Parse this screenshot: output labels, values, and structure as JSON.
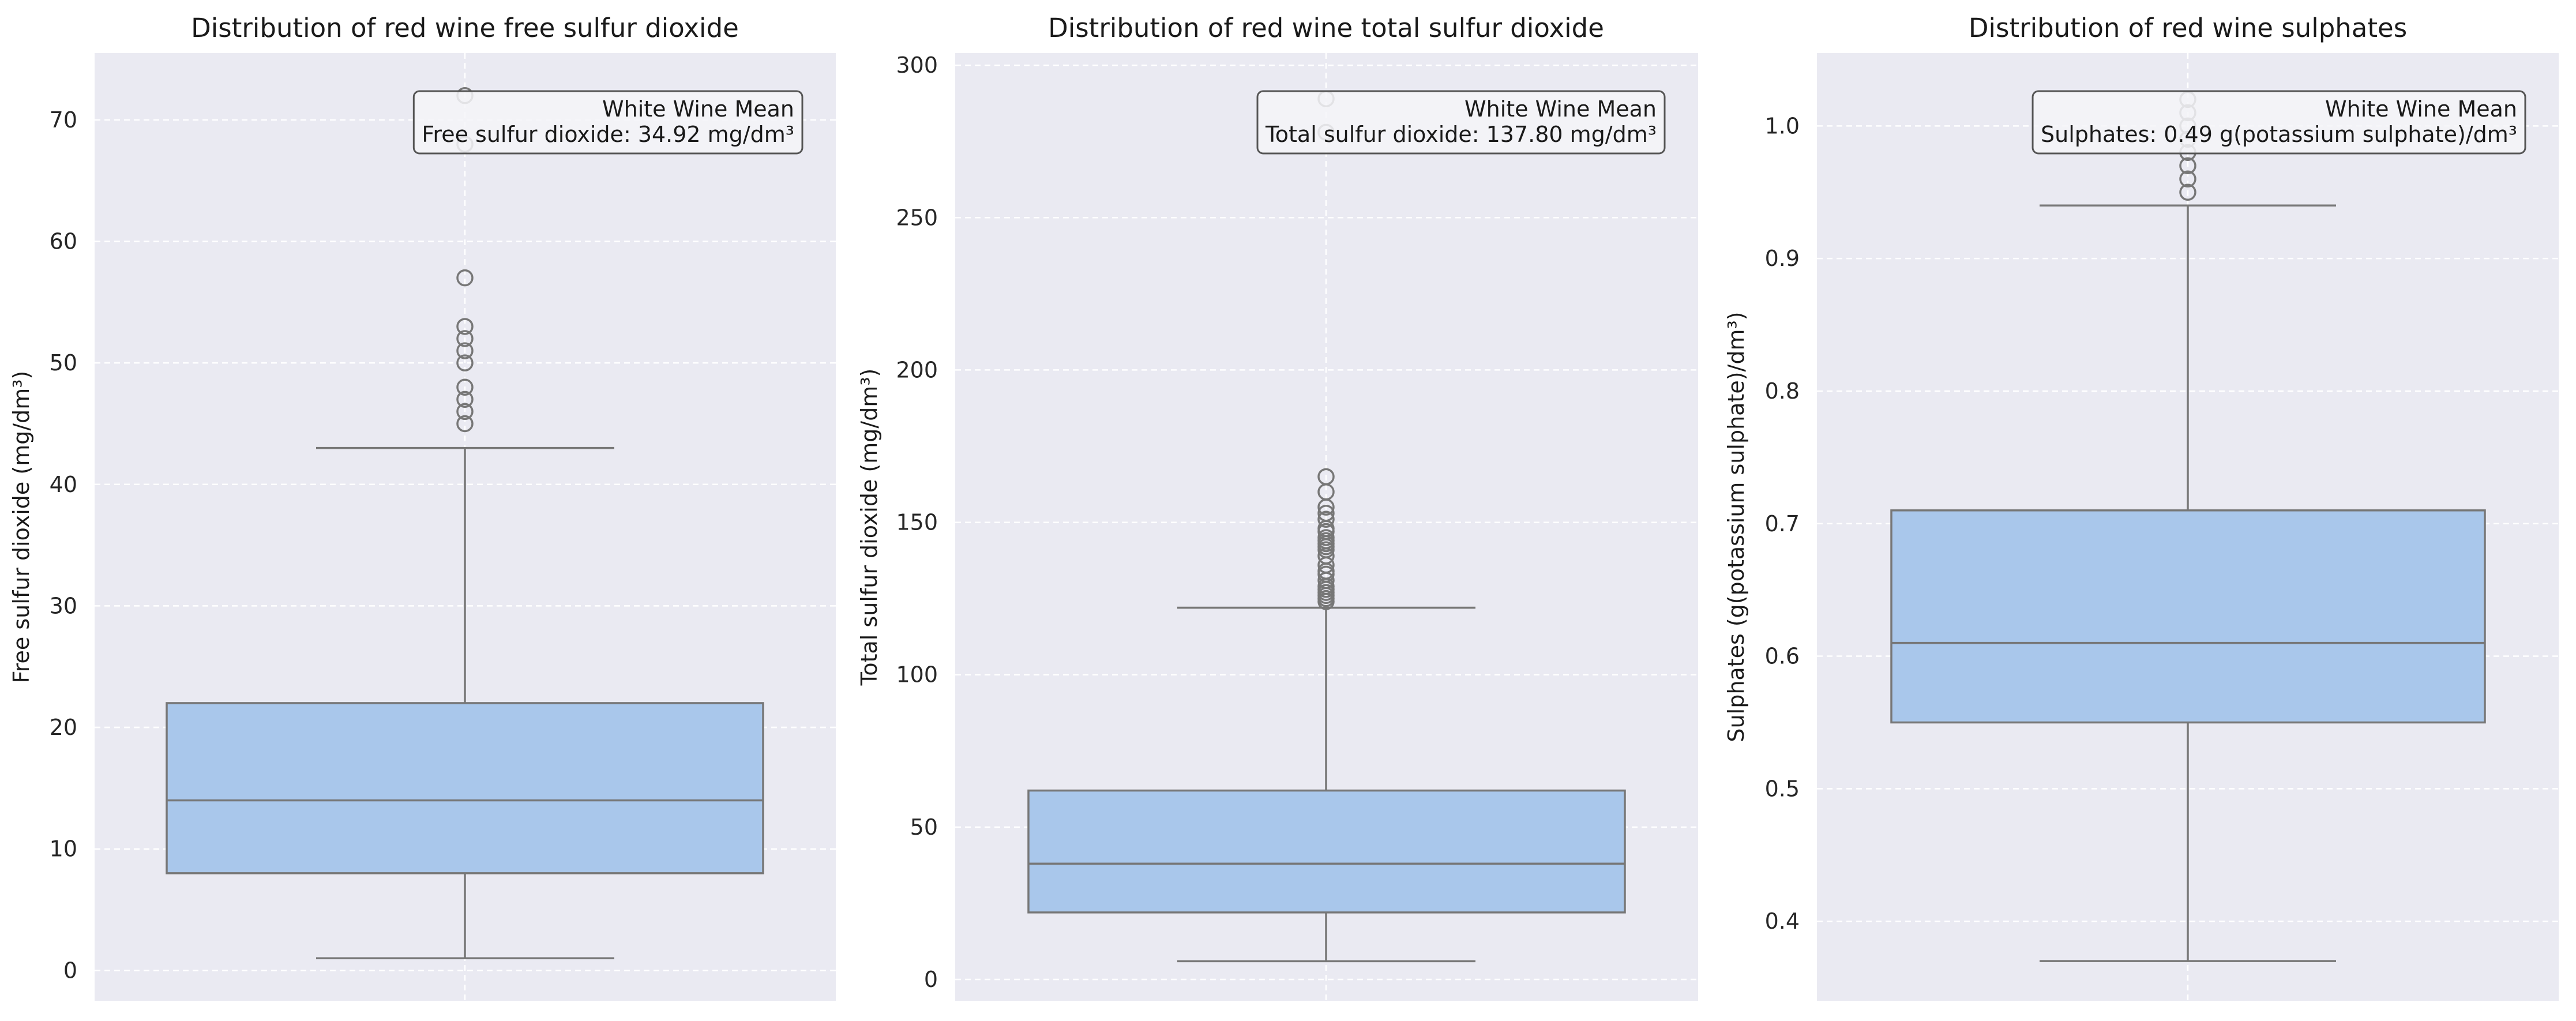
{
  "colors": {
    "plot_background": "#eaeaf2",
    "gridline": "#ffffff",
    "box_fill": "#a9c7eb",
    "box_edge": "#777777",
    "legend_fill": "#f4f4f8",
    "legend_edge": "#555555"
  },
  "chart_data": [
    {
      "type": "box",
      "title": "Distribution of red wine free sulfur dioxide",
      "xlabel": "",
      "ylabel": "Free sulfur dioxide (mg/dm³)",
      "ylim": [
        -2.5,
        75.5
      ],
      "yticks": [
        0,
        10,
        20,
        30,
        40,
        50,
        60,
        70
      ],
      "ytick_labels": [
        "0",
        "10",
        "20",
        "30",
        "40",
        "50",
        "60",
        "70"
      ],
      "grid": true,
      "box": {
        "whisker_low": 1,
        "q1": 8,
        "median": 14,
        "q3": 22,
        "whisker_high": 43
      },
      "outliers": [
        45,
        46,
        47,
        48,
        50,
        51,
        52,
        53,
        57,
        68,
        72
      ],
      "annotation": {
        "lines": [
          "White Wine Mean",
          "Free sulfur dioxide: 34.92 mg/dm³"
        ],
        "placement": "top-right"
      }
    },
    {
      "type": "box",
      "title": "Distribution of red wine total sulfur dioxide",
      "xlabel": "",
      "ylabel": "Total sulfur dioxide (mg/dm³)",
      "ylim": [
        -7,
        304
      ],
      "yticks": [
        0,
        50,
        100,
        150,
        200,
        250,
        300
      ],
      "ytick_labels": [
        "0",
        "50",
        "100",
        "150",
        "200",
        "250",
        "300"
      ],
      "grid": true,
      "box": {
        "whisker_low": 6,
        "q1": 22,
        "median": 38,
        "q3": 62,
        "whisker_high": 122
      },
      "outliers": [
        124,
        125,
        126,
        127,
        128,
        129,
        131,
        133,
        134,
        136,
        139,
        141,
        142,
        143,
        144,
        145,
        147,
        148,
        151,
        153,
        155,
        160,
        165,
        278,
        289
      ],
      "annotation": {
        "lines": [
          "White Wine Mean",
          "Total sulfur dioxide: 137.80 mg/dm³"
        ],
        "placement": "top-right"
      }
    },
    {
      "type": "box",
      "title": "Distribution of red wine sulphates",
      "xlabel": "",
      "ylabel": "Sulphates (g(potassium sulphate)/dm³)",
      "ylim": [
        0.34,
        1.055
      ],
      "yticks": [
        0.4,
        0.5,
        0.6,
        0.7,
        0.8,
        0.9,
        1.0
      ],
      "ytick_labels": [
        "0.4",
        "0.5",
        "0.6",
        "0.7",
        "0.8",
        "0.9",
        "1.0"
      ],
      "grid": true,
      "box": {
        "whisker_low": 0.37,
        "q1": 0.55,
        "median": 0.61,
        "q3": 0.71,
        "whisker_high": 0.94
      },
      "outliers": [
        0.95,
        0.96,
        0.97,
        0.98,
        0.99,
        1.0,
        1.01,
        1.02
      ],
      "annotation": {
        "lines": [
          "White Wine Mean",
          "Sulphates: 0.49 g(potassium sulphate)/dm³"
        ],
        "placement": "top-right"
      }
    }
  ]
}
